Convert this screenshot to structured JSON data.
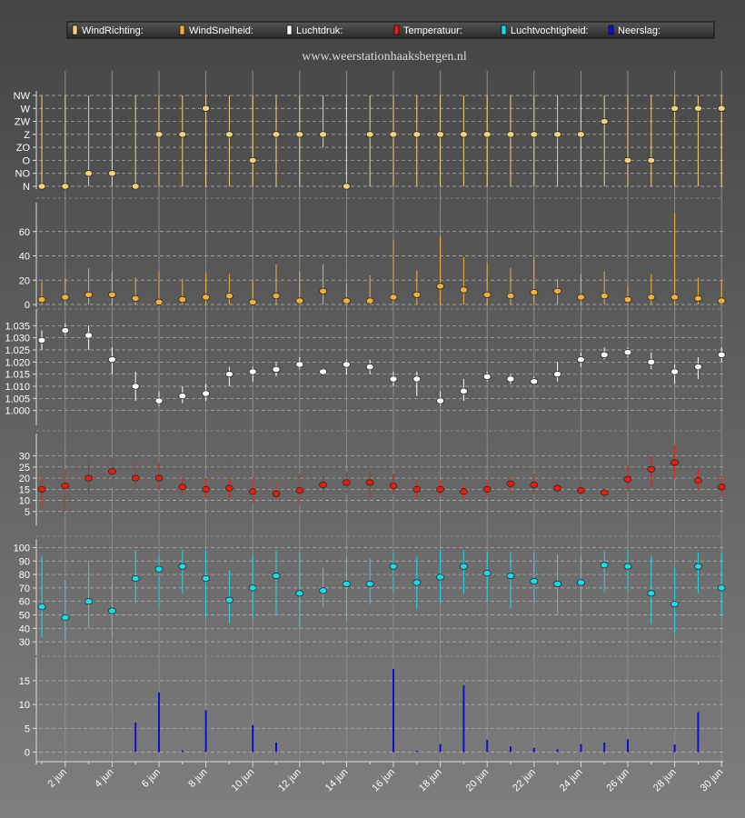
{
  "site_title": "www.weerstationhaaksbergen.nl",
  "legend": [
    {
      "label": "WindRichting:",
      "color": "#f2d27c"
    },
    {
      "label": "WindSnelheid:",
      "color": "#f0b040"
    },
    {
      "label": "Luchtdruk:",
      "color": "#ffffff"
    },
    {
      "label": "Temperatuur:",
      "color": "#e02010"
    },
    {
      "label": "Luchtvochtigheid:",
      "color": "#20d8e8"
    },
    {
      "label": "Neerslag:",
      "color": "#1010c8"
    }
  ],
  "x_tick_labels": [
    "2 jun",
    "4 jun",
    "6 jun",
    "8 jun",
    "10 jun",
    "12 jun",
    "14 jun",
    "16 jun",
    "18 jun",
    "20 jun",
    "22 jun",
    "24 jun",
    "26 jun",
    "28 jun",
    "30 jun"
  ],
  "chart_data": [
    {
      "type": "scatter",
      "name": "WindRichting:",
      "color": "#f2d27c",
      "x": [
        1,
        2,
        3,
        4,
        5,
        6,
        7,
        8,
        9,
        10,
        11,
        12,
        13,
        14,
        15,
        16,
        17,
        18,
        19,
        20,
        21,
        22,
        23,
        24,
        25,
        26,
        27,
        28,
        29,
        30
      ],
      "y": [
        "N",
        "N",
        "NO",
        "NO",
        "N",
        "Z",
        "Z",
        "W",
        "Z",
        "O",
        "Z",
        "Z",
        "Z",
        "N",
        "Z",
        "Z",
        "Z",
        "Z",
        "Z",
        "Z",
        "Z",
        "Z",
        "Z",
        "Z",
        "ZW",
        "O",
        "O",
        "W",
        "W",
        "W"
      ],
      "ylabels": [
        "N",
        "NO",
        "O",
        "ZO",
        "Z",
        "ZW",
        "W",
        "NW"
      ],
      "ylim": [
        0,
        7
      ],
      "ranges": [
        [
          0,
          7
        ],
        [
          0,
          7
        ],
        [
          0,
          7
        ],
        [
          0,
          7
        ],
        [
          0,
          7
        ],
        [
          0,
          7
        ],
        [
          0,
          7
        ],
        [
          0,
          7
        ],
        [
          0,
          7
        ],
        [
          0,
          7
        ],
        [
          0,
          7
        ],
        [
          0,
          7
        ],
        [
          3,
          7
        ],
        [
          0,
          7
        ],
        [
          0,
          7
        ],
        [
          0,
          7
        ],
        [
          0,
          7
        ],
        [
          0,
          7
        ],
        [
          0,
          7
        ],
        [
          0,
          7
        ],
        [
          0,
          7
        ],
        [
          0,
          7
        ],
        [
          0,
          7
        ],
        [
          0,
          7
        ],
        [
          0,
          7
        ],
        [
          0,
          7
        ],
        [
          0,
          7
        ],
        [
          0,
          7
        ],
        [
          0,
          7
        ],
        [
          0,
          7
        ]
      ],
      "grid": true
    },
    {
      "type": "scatter",
      "name": "WindSnelheid:",
      "color": "#f0b040",
      "x": [
        1,
        2,
        3,
        4,
        5,
        6,
        7,
        8,
        9,
        10,
        11,
        12,
        13,
        14,
        15,
        16,
        17,
        18,
        19,
        20,
        21,
        22,
        23,
        24,
        25,
        26,
        27,
        28,
        29,
        30
      ],
      "y": [
        4,
        6,
        8,
        8,
        5,
        2,
        4,
        6,
        7,
        2,
        7,
        3,
        11,
        3,
        3,
        6,
        8,
        15,
        12,
        8,
        7,
        10,
        11,
        6,
        7,
        4,
        6,
        6,
        5,
        3
      ],
      "low": [
        0,
        0,
        0,
        0,
        0,
        0,
        0,
        0,
        0,
        0,
        0,
        0,
        0,
        0,
        0,
        0,
        0,
        0,
        0,
        0,
        0,
        0,
        0,
        0,
        0,
        0,
        0,
        0,
        0,
        0
      ],
      "high": [
        19,
        22,
        30,
        27,
        22,
        27,
        21,
        26,
        25,
        20,
        33,
        27,
        33,
        17,
        24,
        53,
        28,
        56,
        39,
        34,
        30,
        39,
        21,
        25,
        27,
        16,
        25,
        75,
        22,
        20
      ],
      "yticks": [
        0,
        20,
        40,
        60
      ],
      "ylim": [
        0,
        80
      ],
      "grid": true
    },
    {
      "type": "scatter",
      "name": "Luchtdruk:",
      "color": "#ffffff",
      "x": [
        1,
        2,
        3,
        4,
        5,
        6,
        7,
        8,
        9,
        10,
        11,
        12,
        13,
        14,
        15,
        16,
        17,
        18,
        19,
        20,
        21,
        22,
        23,
        24,
        25,
        26,
        27,
        28,
        29,
        30
      ],
      "y": [
        1.029,
        1.033,
        1.031,
        1.021,
        1.01,
        1.004,
        1.006,
        1.007,
        1.015,
        1.016,
        1.017,
        1.019,
        1.016,
        1.019,
        1.018,
        1.013,
        1.013,
        1.004,
        1.008,
        1.014,
        1.013,
        1.012,
        1.015,
        1.021,
        1.023,
        1.024,
        1.02,
        1.016,
        1.018,
        1.023
      ],
      "low": [
        1.025,
        1.031,
        1.025,
        1.015,
        1.004,
        1.002,
        1.003,
        1.004,
        1.01,
        1.012,
        1.014,
        1.017,
        1.015,
        1.015,
        1.015,
        1.01,
        1.006,
        1.002,
        1.004,
        1.012,
        1.011,
        1.011,
        1.012,
        1.018,
        1.021,
        1.022,
        1.017,
        1.011,
        1.013,
        1.02
      ],
      "high": [
        1.033,
        1.036,
        1.035,
        1.026,
        1.016,
        1.008,
        1.01,
        1.011,
        1.018,
        1.018,
        1.02,
        1.022,
        1.017,
        1.021,
        1.021,
        1.016,
        1.016,
        1.008,
        1.013,
        1.016,
        1.015,
        1.014,
        1.02,
        1.024,
        1.026,
        1.026,
        1.024,
        1.019,
        1.022,
        1.026
      ],
      "yticks": [
        "1.000",
        "1.005",
        "1.010",
        "1.015",
        "1.020",
        "1.025",
        "1.030",
        "1.035"
      ],
      "ylim": [
        0.995,
        1.04
      ],
      "grid": true
    },
    {
      "type": "scatter",
      "name": "Temperatuur:",
      "color": "#e02010",
      "x": [
        1,
        2,
        3,
        4,
        5,
        6,
        7,
        8,
        9,
        10,
        11,
        12,
        13,
        14,
        15,
        16,
        17,
        18,
        19,
        20,
        21,
        22,
        23,
        24,
        25,
        26,
        27,
        28,
        29,
        30
      ],
      "y": [
        15,
        16.5,
        20,
        23,
        20,
        20,
        16,
        15,
        15.5,
        14,
        13,
        14.5,
        17,
        18,
        18,
        16.5,
        15,
        15,
        14,
        15,
        17.5,
        17,
        15.5,
        14.5,
        13.5,
        19.5,
        24,
        27,
        19,
        16
      ],
      "low": [
        7,
        5,
        13,
        16,
        15,
        15,
        13,
        11,
        11,
        9,
        9,
        8,
        13,
        13,
        11,
        13,
        11,
        12,
        11,
        12,
        14,
        13,
        13,
        12,
        11,
        14,
        16,
        20,
        15,
        12
      ],
      "high": [
        21,
        24,
        27,
        29,
        27,
        27,
        20,
        20,
        20,
        20,
        18,
        22,
        21,
        23,
        23,
        22,
        19,
        19,
        17,
        19,
        21,
        22,
        20,
        19,
        15,
        26,
        30,
        35,
        24,
        21
      ],
      "yticks": [
        5,
        10,
        15,
        20,
        25,
        30
      ],
      "ylim": [
        0,
        38
      ],
      "grid": true
    },
    {
      "type": "scatter",
      "name": "Luchtvochtigheid:",
      "color": "#20d8e8",
      "x": [
        1,
        2,
        3,
        4,
        5,
        6,
        7,
        8,
        9,
        10,
        11,
        12,
        13,
        14,
        15,
        16,
        17,
        18,
        19,
        20,
        21,
        22,
        23,
        24,
        25,
        26,
        27,
        28,
        29,
        30
      ],
      "y": [
        56,
        48,
        60,
        53,
        77,
        84,
        86,
        77,
        61,
        70,
        79,
        66,
        68,
        73,
        73,
        86,
        74,
        78,
        86,
        81,
        79,
        75,
        73,
        74,
        87,
        86,
        66,
        58,
        86,
        70
      ],
      "low": [
        33,
        32,
        40,
        33,
        58,
        57,
        66,
        48,
        44,
        47,
        50,
        40,
        56,
        46,
        58,
        67,
        54,
        58,
        66,
        60,
        55,
        58,
        51,
        53,
        67,
        67,
        43,
        36,
        66,
        49
      ],
      "high": [
        94,
        76,
        90,
        78,
        98,
        94,
        98,
        98,
        83,
        94,
        98,
        96,
        85,
        93,
        92,
        96,
        93,
        98,
        98,
        97,
        97,
        96,
        95,
        94,
        98,
        98,
        94,
        85,
        96,
        96
      ],
      "yticks": [
        30,
        40,
        50,
        60,
        70,
        80,
        90,
        100
      ],
      "ylim": [
        22,
        103
      ],
      "grid": true
    },
    {
      "type": "bar",
      "name": "Neerslag:",
      "color": "#1010c8",
      "x": [
        1,
        2,
        3,
        4,
        5,
        6,
        7,
        8,
        9,
        10,
        11,
        12,
        13,
        14,
        15,
        16,
        17,
        18,
        19,
        20,
        21,
        22,
        23,
        24,
        25,
        26,
        27,
        28,
        29,
        30
      ],
      "values": [
        0,
        0,
        0,
        0,
        6.2,
        12.5,
        0.4,
        8.8,
        0,
        5.7,
        2,
        0,
        0,
        0,
        0,
        17.5,
        0.3,
        1.7,
        14,
        2.6,
        1.2,
        0.9,
        0.6,
        1.7,
        2,
        2.7,
        0,
        1.6,
        8.4,
        0
      ],
      "yticks": [
        0,
        5,
        10,
        15
      ],
      "ylim": [
        -2,
        19
      ],
      "grid": true
    }
  ]
}
